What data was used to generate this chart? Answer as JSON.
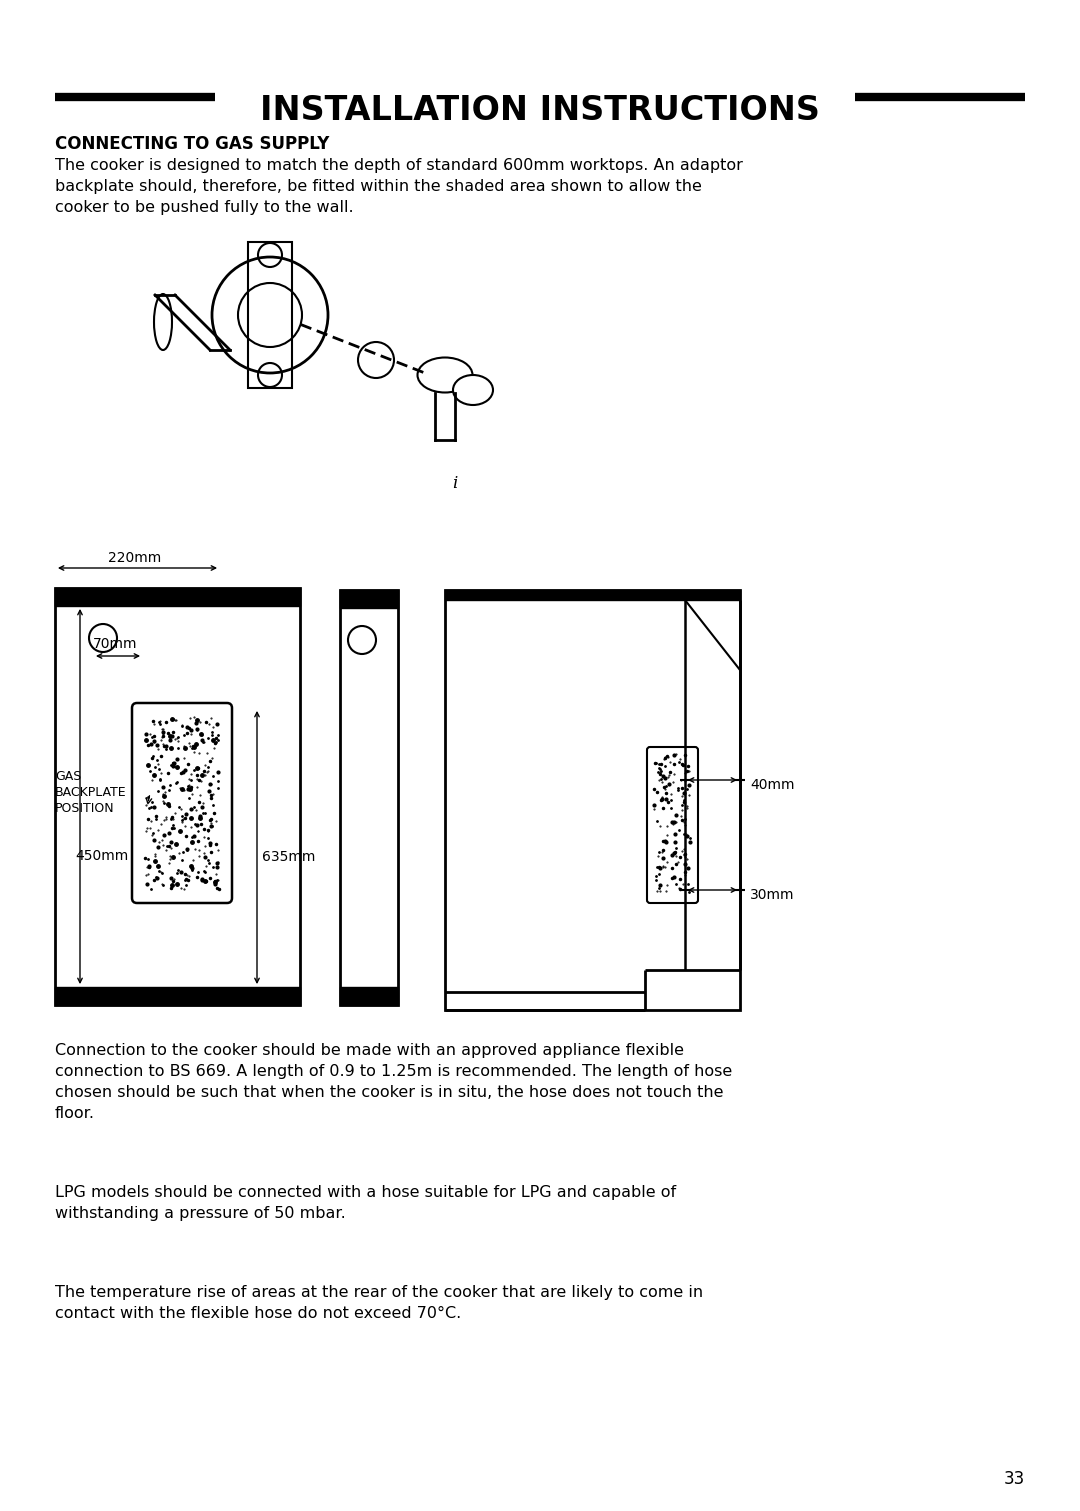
{
  "title": "INSTALLATION INSTRUCTIONS",
  "section_title": "CONNECTING TO GAS SUPPLY",
  "body_text_1": "The cooker is designed to match the depth of standard 600mm worktops. An adaptor\nbackplate should, therefore, be fitted within the shaded area shown to allow the\ncooker to be pushed fully to the wall.",
  "body_text_2": "Connection to the cooker should be made with an approved appliance flexible\nconnection to BS 669. A length of 0.9 to 1.25m is recommended. The length of hose\nchosen should be such that when the cooker is in situ, the hose does not touch the\nfloor.",
  "body_text_3": "LPG models should be connected with a hose suitable for LPG and capable of\nwithstanding a pressure of 50 mbar.",
  "body_text_4": "The temperature rise of areas at the rear of the cooker that are likely to come in\ncontact with the flexible hose do not exceed 70°C.",
  "page_number": "33",
  "bg_color": "#ffffff",
  "text_color": "#000000",
  "dim_220mm": "220mm",
  "dim_70mm": "70mm",
  "dim_635mm": "635mm",
  "dim_450mm": "450mm",
  "dim_40mm": "40mm",
  "dim_30mm": "30mm",
  "label_gas": "GAS\nBACKPLATE\nPOSITION"
}
